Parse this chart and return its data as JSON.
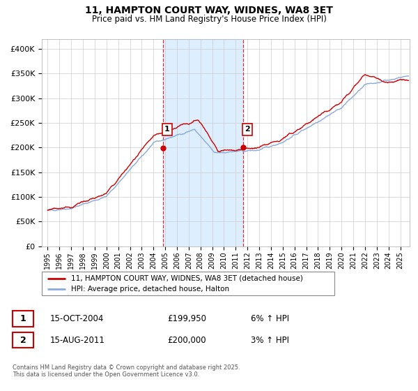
{
  "title": "11, HAMPTON COURT WAY, WIDNES, WA8 3ET",
  "subtitle": "Price paid vs. HM Land Registry's House Price Index (HPI)",
  "legend_line1": "11, HAMPTON COURT WAY, WIDNES, WA8 3ET (detached house)",
  "legend_line2": "HPI: Average price, detached house, Halton",
  "annotation1_label": "1",
  "annotation1_date": "15-OCT-2004",
  "annotation1_price": "£199,950",
  "annotation1_hpi": "6% ↑ HPI",
  "annotation2_label": "2",
  "annotation2_date": "15-AUG-2011",
  "annotation2_price": "£200,000",
  "annotation2_hpi": "3% ↑ HPI",
  "footer": "Contains HM Land Registry data © Crown copyright and database right 2025.\nThis data is licensed under the Open Government Licence v3.0.",
  "red_color": "#cc0000",
  "blue_color": "#88aadd",
  "shading_color": "#ddeeff",
  "vline_color": "#cc0000",
  "annotation_box_color": "#cc0000",
  "ylim": [
    0,
    420000
  ],
  "yticks": [
    0,
    50000,
    100000,
    150000,
    200000,
    250000,
    300000,
    350000,
    400000
  ],
  "xlabel_years": [
    "1995",
    "1996",
    "1997",
    "1998",
    "1999",
    "2000",
    "2001",
    "2002",
    "2003",
    "2004",
    "2005",
    "2006",
    "2007",
    "2008",
    "2009",
    "2010",
    "2011",
    "2012",
    "2013",
    "2014",
    "2015",
    "2016",
    "2017",
    "2018",
    "2019",
    "2020",
    "2021",
    "2022",
    "2023",
    "2024",
    "2025"
  ],
  "purchase1_x": 2004.79,
  "purchase1_y": 199950,
  "purchase2_x": 2011.62,
  "purchase2_y": 200000,
  "xlim_left": 1994.5,
  "xlim_right": 2025.8
}
